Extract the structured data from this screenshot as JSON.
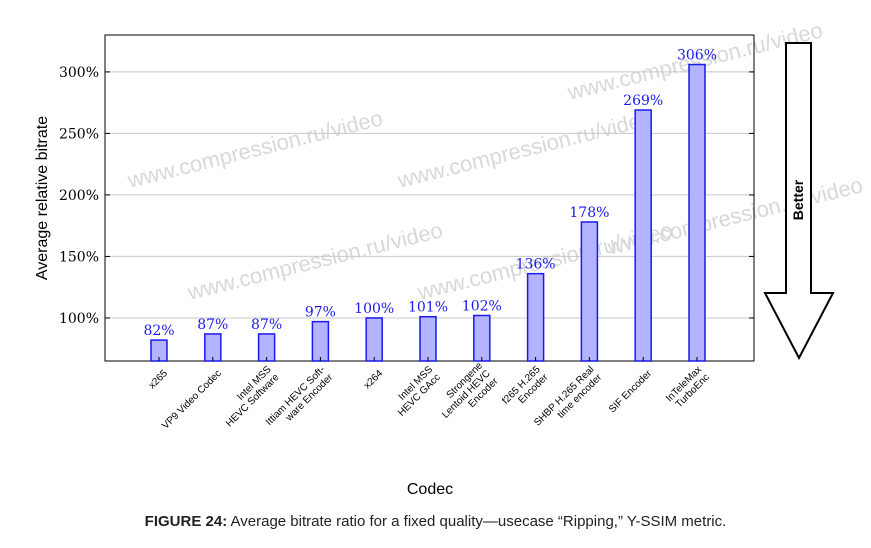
{
  "chart_data": {
    "type": "bar",
    "xlabel": "Codec",
    "ylabel": "Average relative bitrate",
    "ylim": [
      65,
      330
    ],
    "yticks": [
      100,
      150,
      200,
      250,
      300
    ],
    "ytick_labels": [
      "100%",
      "150%",
      "200%",
      "250%",
      "300%"
    ],
    "grid": true,
    "categories": [
      [
        "x265"
      ],
      [
        "VP9 Video Codec"
      ],
      [
        "Intel MSS",
        "HEVC Software"
      ],
      [
        "Ittiam HEVC Soft-",
        "ware Encoder"
      ],
      [
        "x264"
      ],
      [
        "Intel MSS",
        "HEVC GAcc"
      ],
      [
        "Strongene",
        "Lentoid HEVC",
        "Encoder"
      ],
      [
        "f265 H.265",
        "Encoder"
      ],
      [
        "SHBP H.265 Real",
        "time encoder"
      ],
      [
        "SIF Encoder"
      ],
      [
        "InTeleMax",
        "TurboEnc"
      ]
    ],
    "values": [
      82,
      87,
      87,
      97,
      100,
      101,
      102,
      136,
      178,
      269,
      306
    ],
    "value_labels": [
      "82%",
      "87%",
      "87%",
      "97%",
      "100%",
      "101%",
      "102%",
      "136%",
      "178%",
      "269%",
      "306%"
    ],
    "bar_color": "#b3b3ff",
    "bar_edge_color": "#1a1aee",
    "annotation": "Better"
  },
  "watermark": "www.compression.ru/video",
  "caption": {
    "label": "FIGURE 24:",
    "text": " Average bitrate ratio for a fixed quality—usecase “Ripping,” Y-SSIM metric."
  }
}
